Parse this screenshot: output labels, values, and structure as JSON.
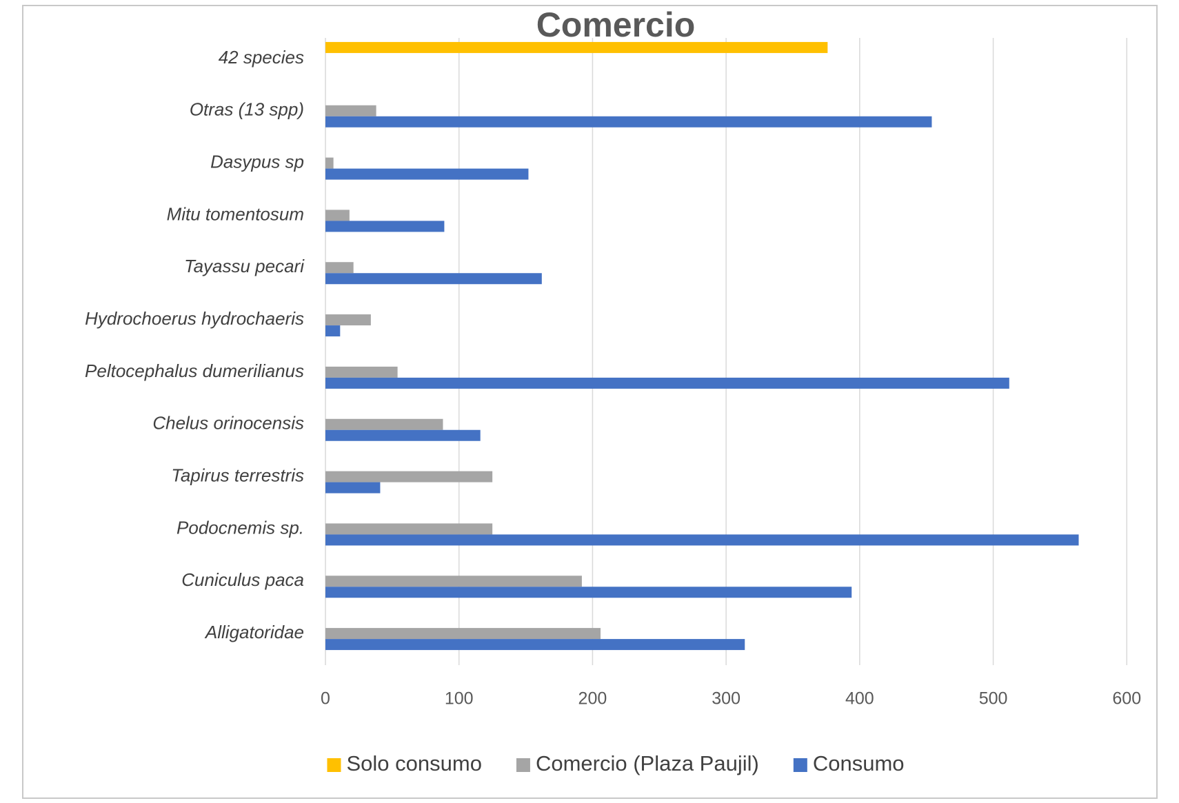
{
  "chart_data": {
    "type": "hbar",
    "title": "Comercio",
    "categories": [
      "42 species",
      "Otras (13 spp)",
      "Dasypus sp",
      "Mitu tomentosum",
      "Tayassu pecari",
      "Hydrochoerus hydrochaeris",
      "Peltocephalus dumerilianus",
      "Chelus orinocensis",
      "Tapirus terrestris",
      "Podocnemis sp.",
      "Cuniculus paca",
      "Alligatoridae"
    ],
    "series": [
      {
        "name": "Solo consumo",
        "color": "#FFC000",
        "values": [
          376,
          null,
          null,
          null,
          null,
          null,
          null,
          null,
          null,
          null,
          null,
          null
        ]
      },
      {
        "name": "Comercio (Plaza Paujil)",
        "color": "#A5A5A5",
        "values": [
          null,
          38,
          6,
          18,
          21,
          34,
          54,
          88,
          125,
          125,
          192,
          206
        ]
      },
      {
        "name": "Consumo",
        "color": "#4472C4",
        "values": [
          null,
          454,
          152,
          89,
          162,
          11,
          512,
          116,
          41,
          564,
          394,
          314
        ]
      }
    ],
    "xlim": [
      0,
      620
    ],
    "xticks": [
      0,
      100,
      200,
      300,
      400,
      500,
      600
    ],
    "grid": true,
    "legend": "bottom"
  }
}
